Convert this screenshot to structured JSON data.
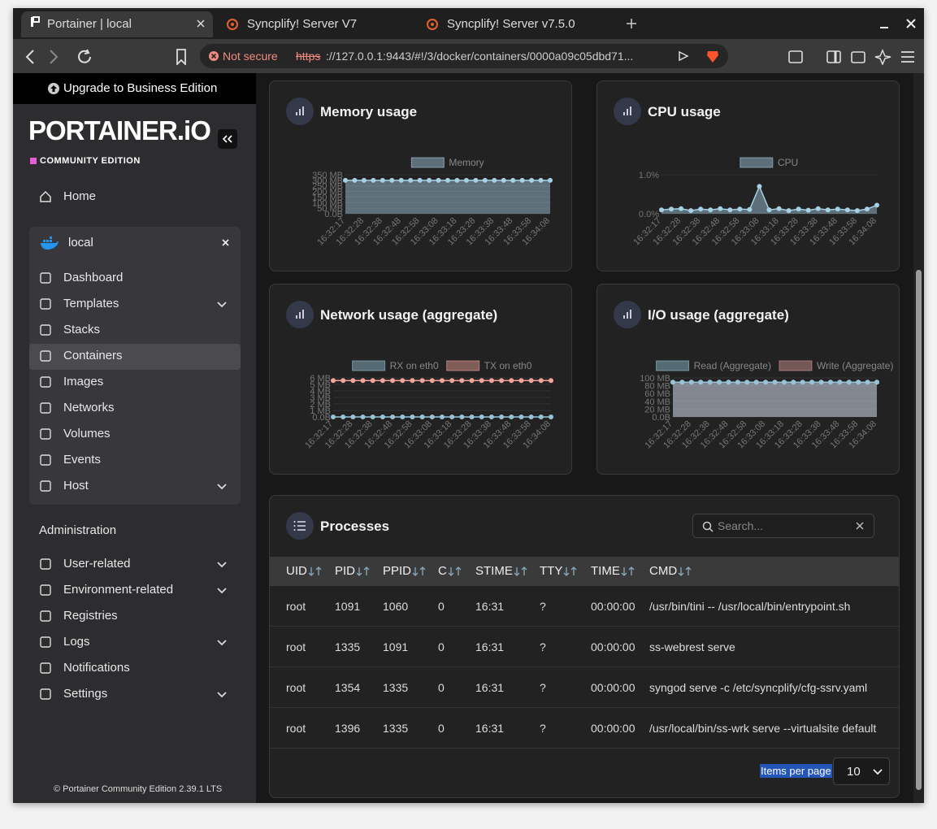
{
  "browser": {
    "tabs": [
      "Portainer | local",
      "Syncplify! Server V7",
      "Syncplify! Server v7.5.0"
    ],
    "security": "Not secure",
    "url_scheme": "https",
    "url_rest": "://127.0.0.1:9443/#!/3/docker/containers/0000a09c05dbd71..."
  },
  "sidebar": {
    "upgrade": "Upgrade to Business Edition",
    "logo": "PORTAINER.iO",
    "edition": "COMMUNITY EDITION",
    "home": "Home",
    "environment": "local",
    "environment_items": [
      "Dashboard",
      "Templates",
      "Stacks",
      "Containers",
      "Images",
      "Networks",
      "Volumes",
      "Events",
      "Host"
    ],
    "administration": "Administration",
    "admin_items": [
      "User-related",
      "Environment-related",
      "Registries",
      "Logs",
      "Notifications",
      "Settings"
    ],
    "footer": "© Portainer Community Edition",
    "version": "2.39.1 LTS"
  },
  "charts": [
    {
      "type": "line",
      "title": "Memory usage",
      "area": true,
      "categories": [
        "16:32:17",
        null,
        "16:32:28",
        null,
        "16:32:38",
        null,
        "16:32:48",
        null,
        "16:32:58",
        null,
        "16:33:08",
        null,
        "16:33:18",
        null,
        "16:33:28",
        null,
        "16:33:38",
        null,
        "16:33:48",
        null,
        "16:33:58",
        null,
        "16:34:08"
      ],
      "series": [
        {
          "name": "Memory",
          "color": "#a6d0e4",
          "values": [
            300,
            300,
            300,
            300,
            300,
            300,
            300,
            300,
            300,
            300,
            300,
            300,
            300,
            300,
            300,
            300,
            300,
            300,
            300,
            300,
            300,
            300,
            300
          ]
        }
      ],
      "ylim": [
        0,
        350
      ],
      "yticks": [
        {
          "value": 0,
          "label": "0.0B"
        },
        {
          "value": 50,
          "label": "50 MB"
        },
        {
          "value": 100,
          "label": "100 MB"
        },
        {
          "value": 150,
          "label": "150 MB"
        },
        {
          "value": 200,
          "label": "200 MB"
        },
        {
          "value": 250,
          "label": "250 MB"
        },
        {
          "value": 300,
          "label": "300 MB"
        },
        {
          "value": 350,
          "label": "350 MB"
        }
      ]
    },
    {
      "type": "line",
      "title": "CPU usage",
      "area": true,
      "categories": [
        "16:32:17",
        null,
        "16:32:28",
        null,
        "16:32:38",
        null,
        "16:32:48",
        null,
        "16:32:58",
        null,
        "16:33:08",
        null,
        "16:33:18",
        null,
        "16:33:28",
        null,
        "16:33:38",
        null,
        "16:33:48",
        null,
        "16:33:58",
        null,
        "16:34:08"
      ],
      "series": [
        {
          "name": "CPU",
          "color": "#a6d0e4",
          "values": [
            0.1,
            0.12,
            0.13,
            0.08,
            0.12,
            0.1,
            0.13,
            0.1,
            0.12,
            0.11,
            0.7,
            0.1,
            0.13,
            0.08,
            0.12,
            0.09,
            0.13,
            0.1,
            0.12,
            0.1,
            0.08,
            0.12,
            0.22
          ]
        }
      ],
      "ylim": [
        0,
        1
      ],
      "yticks": [
        {
          "value": 0,
          "label": "0.0%"
        },
        {
          "value": 1,
          "label": "1.0%"
        }
      ]
    },
    {
      "type": "line",
      "title": "Network usage (aggregate)",
      "area": false,
      "categories": [
        "16:32:17",
        null,
        "16:32:28",
        null,
        "16:32:38",
        null,
        "16:32:48",
        null,
        "16:32:58",
        null,
        "16:33:08",
        null,
        "16:33:18",
        null,
        "16:33:28",
        null,
        "16:33:38",
        null,
        "16:33:48",
        null,
        "16:33:58",
        null,
        "16:34:08"
      ],
      "series": [
        {
          "name": "RX on eth0",
          "color": "#97c3d8",
          "values": [
            0,
            0,
            0,
            0,
            0,
            0,
            0,
            0,
            0,
            0,
            0,
            0,
            0,
            0,
            0,
            0,
            0,
            0,
            0,
            0,
            0,
            0,
            0
          ]
        },
        {
          "name": "TX on eth0",
          "color": "#f2a39a",
          "values": [
            5.6,
            5.6,
            5.6,
            5.6,
            5.6,
            5.6,
            5.6,
            5.6,
            5.6,
            5.6,
            5.6,
            5.6,
            5.6,
            5.6,
            5.6,
            5.6,
            5.6,
            5.6,
            5.6,
            5.6,
            5.6,
            5.6,
            5.6
          ]
        }
      ],
      "ylim": [
        0,
        6
      ],
      "yticks": [
        {
          "value": 0,
          "label": "0.0B"
        },
        {
          "value": 1,
          "label": "1 MB"
        },
        {
          "value": 2,
          "label": "2 MB"
        },
        {
          "value": 3,
          "label": "3 MB"
        },
        {
          "value": 4,
          "label": "4 MB"
        },
        {
          "value": 5,
          "label": "5 MB"
        },
        {
          "value": 6,
          "label": "6 MB"
        }
      ]
    },
    {
      "type": "line",
      "title": "I/O usage (aggregate)",
      "area": true,
      "categories": [
        "16:32:17",
        null,
        "16:32:28",
        null,
        "16:32:38",
        null,
        "16:32:48",
        null,
        "16:32:58",
        null,
        "16:33:08",
        null,
        "16:33:18",
        null,
        "16:33:28",
        null,
        "16:33:38",
        null,
        "16:33:48",
        null,
        "16:33:58",
        null,
        "16:34:08"
      ],
      "series": [
        {
          "name": "Read (Aggregate)",
          "color": "#97c3d8",
          "values": [
            89,
            89,
            89,
            89,
            89,
            89,
            89,
            89,
            89,
            89,
            89,
            89,
            89,
            89,
            89,
            89,
            89,
            89,
            89,
            89,
            89,
            89,
            89
          ]
        },
        {
          "name": "Write (Aggregate)",
          "color": "#d99a98",
          "values": [
            89,
            89,
            89,
            89,
            89,
            89,
            89,
            89,
            89,
            89,
            89,
            89,
            89,
            89,
            89,
            89,
            89,
            89,
            89,
            89,
            89,
            89,
            89
          ]
        }
      ],
      "ylim": [
        0,
        100
      ],
      "yticks": [
        {
          "value": 0,
          "label": "0.0B"
        },
        {
          "value": 20,
          "label": "20 MB"
        },
        {
          "value": 40,
          "label": "40 MB"
        },
        {
          "value": 60,
          "label": "60 MB"
        },
        {
          "value": 80,
          "label": "80 MB"
        },
        {
          "value": 100,
          "label": "100 MB"
        }
      ]
    }
  ],
  "processes": {
    "title": "Processes",
    "search_placeholder": "Search...",
    "columns": [
      "UID",
      "PID",
      "PPID",
      "C",
      "STIME",
      "TTY",
      "TIME",
      "CMD"
    ],
    "rows": [
      [
        "root",
        "1091",
        "1060",
        "0",
        "16:31",
        "?",
        "00:00:00",
        "/usr/bin/tini -- /usr/local/bin/entrypoint.sh"
      ],
      [
        "root",
        "1335",
        "1091",
        "0",
        "16:31",
        "?",
        "00:00:00",
        "ss-webrest serve"
      ],
      [
        "root",
        "1354",
        "1335",
        "0",
        "16:31",
        "?",
        "00:00:00",
        "syngod serve -c /etc/syncplify/cfg-ssrv.yaml"
      ],
      [
        "root",
        "1396",
        "1335",
        "0",
        "16:31",
        "?",
        "00:00:00",
        "/usr/local/bin/ss-wrk serve --virtualsite default"
      ]
    ],
    "items_per_page_label": "Items per page",
    "items_per_page": "10"
  }
}
